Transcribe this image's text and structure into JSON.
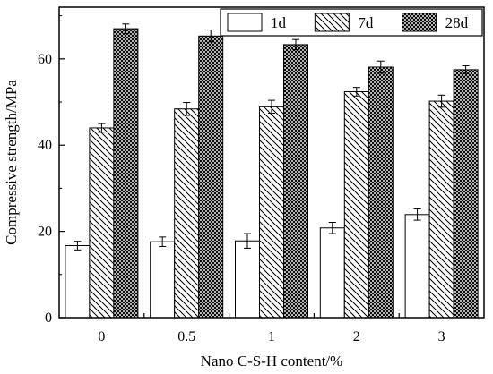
{
  "chart_data": {
    "type": "bar",
    "xlabel": "Nano C-S-H content/%",
    "ylabel": "Compressive strength/MPa",
    "categories": [
      "0",
      "0.5",
      "1",
      "2",
      "3"
    ],
    "ylim": [
      0,
      72
    ],
    "yticks": [
      0,
      20,
      40,
      60
    ],
    "grid": false,
    "legend_position": "top-right",
    "series": [
      {
        "name": "1d",
        "pattern": "blank",
        "values": [
          16.7,
          17.6,
          17.8,
          20.8,
          23.9
        ],
        "errors": [
          1.0,
          1.1,
          1.7,
          1.3,
          1.3
        ]
      },
      {
        "name": "7d",
        "pattern": "diagonal",
        "values": [
          44.0,
          48.4,
          48.9,
          52.4,
          50.2
        ],
        "errors": [
          1.0,
          1.5,
          1.5,
          1.0,
          1.4
        ]
      },
      {
        "name": "28d",
        "pattern": "crosshatch",
        "values": [
          67.0,
          65.3,
          63.3,
          58.1,
          57.5
        ],
        "errors": [
          1.1,
          1.4,
          1.2,
          1.4,
          0.9
        ]
      }
    ]
  }
}
